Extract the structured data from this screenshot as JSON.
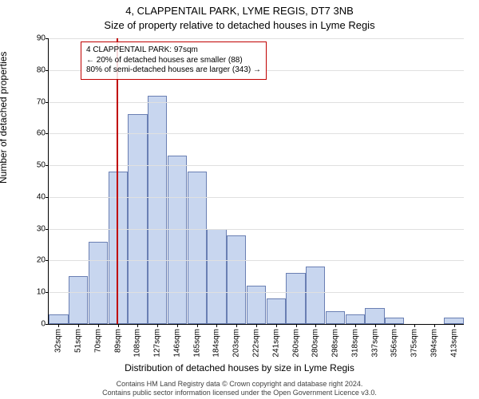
{
  "title": "4, CLAPPENTAIL PARK, LYME REGIS, DT7 3NB",
  "subtitle": "Size of property relative to detached houses in Lyme Regis",
  "ylabel": "Number of detached properties",
  "xlabel": "Distribution of detached houses by size in Lyme Regis",
  "footer_line1": "Contains HM Land Registry data © Crown copyright and database right 2024.",
  "footer_line2": "Contains public sector information licensed under the Open Government Licence v3.0.",
  "chart": {
    "type": "histogram",
    "ylim": [
      0,
      90
    ],
    "ytick_step": 10,
    "bar_fill": "#c8d6ef",
    "bar_stroke": "#6a7fb3",
    "background_color": "#ffffff",
    "grid_color": "#e0e0e0",
    "marker_color": "#c00000",
    "marker_value_sqm": 97,
    "categories": [
      "32sqm",
      "51sqm",
      "70sqm",
      "89sqm",
      "108sqm",
      "127sqm",
      "146sqm",
      "165sqm",
      "184sqm",
      "203sqm",
      "222sqm",
      "241sqm",
      "260sqm",
      "280sqm",
      "298sqm",
      "318sqm",
      "337sqm",
      "356sqm",
      "375sqm",
      "394sqm",
      "413sqm"
    ],
    "values": [
      3,
      15,
      26,
      48,
      66,
      72,
      53,
      48,
      30,
      28,
      12,
      8,
      16,
      18,
      4,
      3,
      5,
      2,
      0,
      0,
      2
    ],
    "bar_width_rel": 0.98,
    "annotation": {
      "line1": "4 CLAPPENTAIL PARK: 97sqm",
      "line2": "← 20% of detached houses are smaller (88)",
      "line3": "80% of semi-detached houses are larger (343) →"
    }
  }
}
